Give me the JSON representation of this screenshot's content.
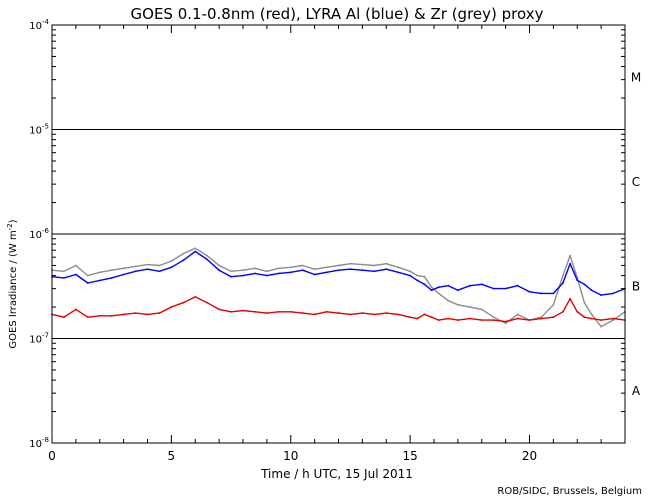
{
  "chart_data": {
    "type": "line",
    "title": "GOES 0.1-0.8nm (red), LYRA Al (blue) & Zr (grey) proxy",
    "xlabel": "Time / h UTC, 15 Jul 2011",
    "ylabel_main": "GOES Irradiance / (W m",
    "ylabel_sup": "-2",
    "ylabel_end": ")",
    "credit": "ROB/SIDC, Brussels, Belgium",
    "x_scale": "linear",
    "y_scale": "log",
    "xlim": [
      0,
      24
    ],
    "ylim": [
      1e-08,
      0.0001
    ],
    "x_ticks": [
      {
        "value": 0,
        "label": "0"
      },
      {
        "value": 5,
        "label": "5"
      },
      {
        "value": 10,
        "label": "10"
      },
      {
        "value": 15,
        "label": "15"
      },
      {
        "value": 20,
        "label": "20"
      }
    ],
    "y_ticks": [
      {
        "exp": -8,
        "base": "10",
        "sup": "-8"
      },
      {
        "exp": -7,
        "base": "10",
        "sup": "-7"
      },
      {
        "exp": -6,
        "base": "10",
        "sup": "-6"
      },
      {
        "exp": -5,
        "base": "10",
        "sup": "-5"
      },
      {
        "exp": -4,
        "base": "10",
        "sup": "-4"
      }
    ],
    "flare_classes": [
      {
        "label": "A",
        "threshold_exp": -7,
        "center_exp": -7.5
      },
      {
        "label": "B",
        "threshold_exp": -6,
        "center_exp": -6.5
      },
      {
        "label": "C",
        "threshold_exp": -5,
        "center_exp": -5.5
      },
      {
        "label": "M",
        "threshold_exp": -4,
        "center_exp": -4.5
      }
    ],
    "series": [
      {
        "name": "LYRA Zr proxy",
        "color": "#8c8c8c",
        "x": [
          0.0,
          0.5,
          1.0,
          1.5,
          2.0,
          2.5,
          3.0,
          3.5,
          4.0,
          4.5,
          5.0,
          5.5,
          6.0,
          6.5,
          7.0,
          7.5,
          8.0,
          8.5,
          9.0,
          9.5,
          10.0,
          10.5,
          11.0,
          11.5,
          12.0,
          12.5,
          13.0,
          13.5,
          14.0,
          14.5,
          15.0,
          15.3,
          15.6,
          15.9,
          16.2,
          16.6,
          17.0,
          17.5,
          18.0,
          18.5,
          19.0,
          19.5,
          20.0,
          20.5,
          21.0,
          21.4,
          21.7,
          22.0,
          22.3,
          22.6,
          23.0,
          23.5,
          24.0
        ],
        "y": [
          4.5e-07,
          4.4e-07,
          5e-07,
          4e-07,
          4.3e-07,
          4.5e-07,
          4.7e-07,
          4.9e-07,
          5.1e-07,
          5e-07,
          5.5e-07,
          6.5e-07,
          7.3e-07,
          6.2e-07,
          5e-07,
          4.4e-07,
          4.5e-07,
          4.7e-07,
          4.4e-07,
          4.7e-07,
          4.8e-07,
          5e-07,
          4.6e-07,
          4.8e-07,
          5e-07,
          5.2e-07,
          5.1e-07,
          5e-07,
          5.2e-07,
          4.8e-07,
          4.4e-07,
          4e-07,
          3.9e-07,
          3.1e-07,
          2.7e-07,
          2.3e-07,
          2.1e-07,
          2e-07,
          1.9e-07,
          1.6e-07,
          1.4e-07,
          1.7e-07,
          1.5e-07,
          1.6e-07,
          2.1e-07,
          4e-07,
          6.2e-07,
          3.8e-07,
          2.2e-07,
          1.7e-07,
          1.3e-07,
          1.5e-07,
          1.8e-07
        ]
      },
      {
        "name": "LYRA Al proxy",
        "color": "#0000ff",
        "x": [
          0.0,
          0.5,
          1.0,
          1.5,
          2.0,
          2.5,
          3.0,
          3.5,
          4.0,
          4.5,
          5.0,
          5.5,
          6.0,
          6.5,
          7.0,
          7.5,
          8.0,
          8.5,
          9.0,
          9.5,
          10.0,
          10.5,
          11.0,
          11.5,
          12.0,
          12.5,
          13.0,
          13.5,
          14.0,
          14.5,
          15.0,
          15.3,
          15.6,
          15.9,
          16.2,
          16.6,
          17.0,
          17.5,
          18.0,
          18.5,
          19.0,
          19.5,
          20.0,
          20.5,
          21.0,
          21.4,
          21.7,
          22.0,
          22.3,
          22.6,
          23.0,
          23.5,
          24.0
        ],
        "y": [
          3.9e-07,
          3.8e-07,
          4.1e-07,
          3.4e-07,
          3.6e-07,
          3.8e-07,
          4.1e-07,
          4.4e-07,
          4.6e-07,
          4.4e-07,
          4.8e-07,
          5.6e-07,
          6.8e-07,
          5.7e-07,
          4.5e-07,
          3.9e-07,
          4e-07,
          4.2e-07,
          4e-07,
          4.2e-07,
          4.3e-07,
          4.5e-07,
          4.1e-07,
          4.3e-07,
          4.5e-07,
          4.6e-07,
          4.5e-07,
          4.4e-07,
          4.6e-07,
          4.3e-07,
          4e-07,
          3.6e-07,
          3.3e-07,
          2.9e-07,
          3.1e-07,
          3.2e-07,
          2.9e-07,
          3.2e-07,
          3.3e-07,
          3e-07,
          3e-07,
          3.2e-07,
          2.8e-07,
          2.7e-07,
          2.7e-07,
          3.4e-07,
          5.2e-07,
          3.6e-07,
          3.3e-07,
          2.9e-07,
          2.6e-07,
          2.7e-07,
          3e-07
        ]
      },
      {
        "name": "GOES 0.1-0.8nm",
        "color": "#e00000",
        "x": [
          0.0,
          0.5,
          1.0,
          1.5,
          2.0,
          2.5,
          3.0,
          3.5,
          4.0,
          4.5,
          5.0,
          5.5,
          6.0,
          6.5,
          7.0,
          7.5,
          8.0,
          8.5,
          9.0,
          9.5,
          10.0,
          10.5,
          11.0,
          11.5,
          12.0,
          12.5,
          13.0,
          13.5,
          14.0,
          14.5,
          15.0,
          15.3,
          15.6,
          15.9,
          16.2,
          16.6,
          17.0,
          17.5,
          18.0,
          18.5,
          19.0,
          19.5,
          20.0,
          20.5,
          21.0,
          21.4,
          21.7,
          22.0,
          22.3,
          22.6,
          23.0,
          23.5,
          24.0
        ],
        "y": [
          1.7e-07,
          1.6e-07,
          1.9e-07,
          1.6e-07,
          1.65e-07,
          1.65e-07,
          1.7e-07,
          1.75e-07,
          1.7e-07,
          1.75e-07,
          2e-07,
          2.2e-07,
          2.5e-07,
          2.2e-07,
          1.9e-07,
          1.8e-07,
          1.85e-07,
          1.8e-07,
          1.75e-07,
          1.8e-07,
          1.8e-07,
          1.75e-07,
          1.7e-07,
          1.8e-07,
          1.75e-07,
          1.7e-07,
          1.75e-07,
          1.7e-07,
          1.75e-07,
          1.7e-07,
          1.6e-07,
          1.55e-07,
          1.7e-07,
          1.6e-07,
          1.5e-07,
          1.55e-07,
          1.5e-07,
          1.55e-07,
          1.5e-07,
          1.5e-07,
          1.45e-07,
          1.55e-07,
          1.5e-07,
          1.55e-07,
          1.6e-07,
          1.8e-07,
          2.4e-07,
          1.8e-07,
          1.6e-07,
          1.55e-07,
          1.5e-07,
          1.55e-07,
          1.5e-07
        ]
      }
    ],
    "legend": "none"
  }
}
